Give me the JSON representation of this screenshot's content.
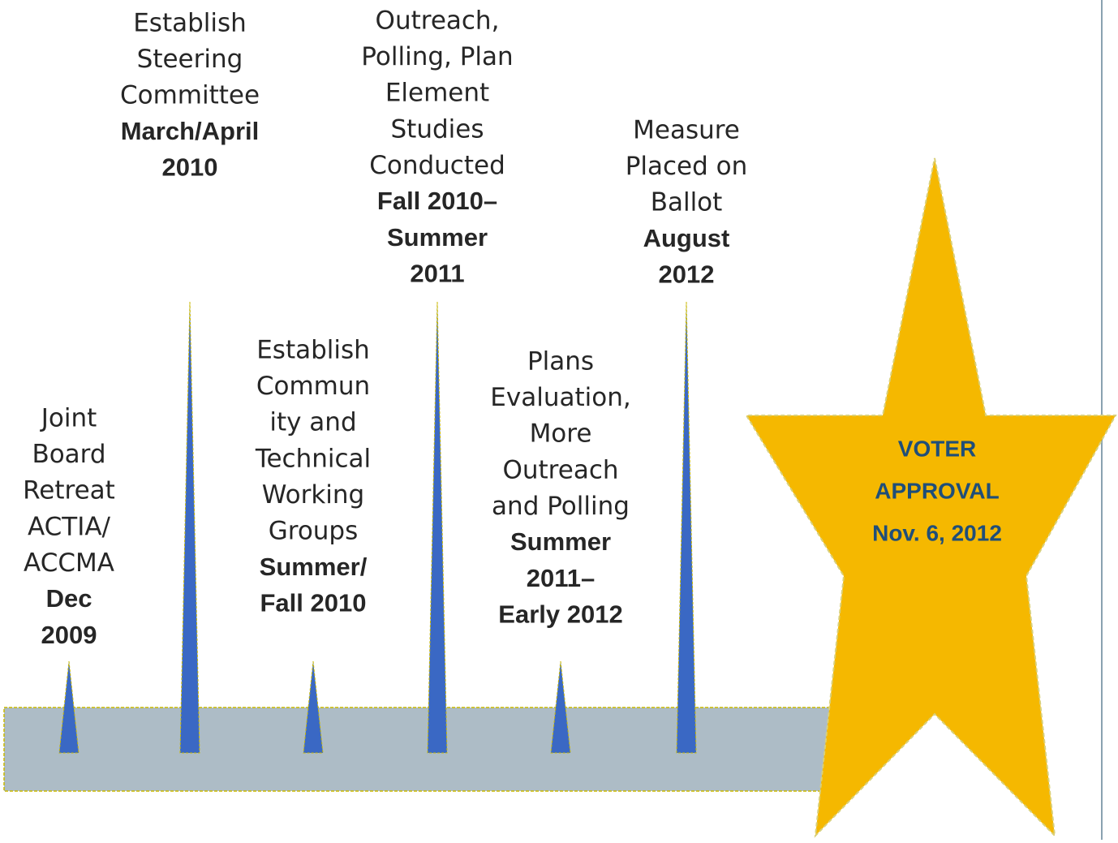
{
  "milestones": [
    {
      "description": [
        "Joint",
        "Board",
        "Retreat",
        "ACTIA/",
        "ACCMA"
      ],
      "date": [
        "Dec",
        "2009"
      ]
    },
    {
      "description": [
        "Establish",
        "Steering",
        "Committee"
      ],
      "date": [
        "March/April",
        "2010"
      ]
    },
    {
      "description": [
        "Establish",
        "Commun",
        "ity and",
        "Technical",
        "Working",
        "Groups"
      ],
      "date": [
        "Summer/",
        "Fall 2010"
      ]
    },
    {
      "description": [
        "Outreach,",
        "Polling, Plan",
        "Element",
        "Studies",
        "Conducted"
      ],
      "date": [
        "Fall 2010–",
        "Summer",
        "2011"
      ]
    },
    {
      "description": [
        "Plans",
        "Evaluation,",
        "More",
        "Outreach",
        "and Polling"
      ],
      "date": [
        "Summer",
        "2011–",
        "Early 2012"
      ]
    },
    {
      "description": [
        "Measure",
        "Placed on",
        "Ballot"
      ],
      "date": [
        "August",
        "2012"
      ]
    }
  ],
  "goal": [
    "VOTER",
    "APPROVAL",
    "Nov. 6, 2012"
  ]
}
